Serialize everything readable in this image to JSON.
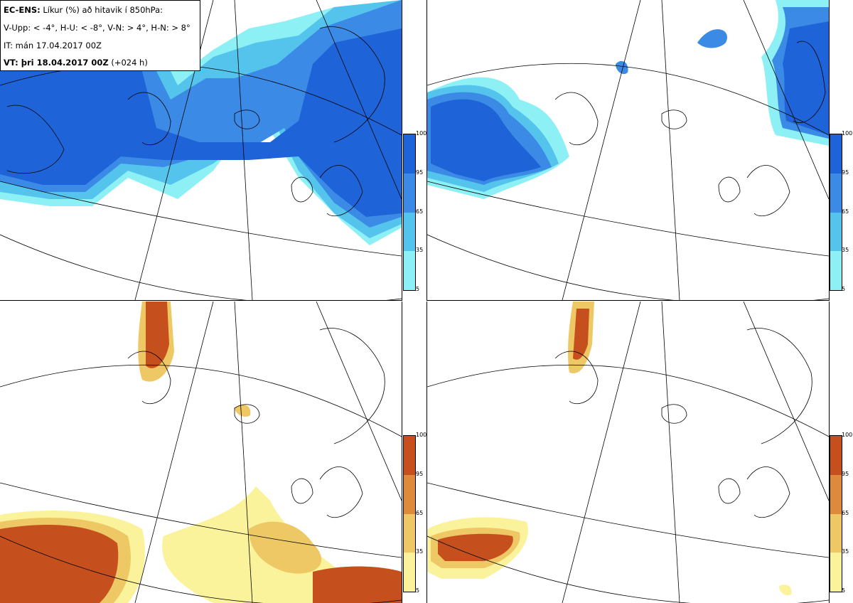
{
  "header": {
    "line1_model": "EC-ENS:",
    "line1_rest": "Líkur (%) að hitavik í 850hPa:",
    "line2": "V-Upp: < -4°, H-U: < -8°, V-N: > 4°, H-N: > 8°",
    "line3": "IT: mán 17.04.2017 00Z",
    "line4_vt": "VT: þri 18.04.2017 00Z",
    "line4_lead": "(+024 h)"
  },
  "colorbar": {
    "ticks": [
      "100",
      "95",
      "65",
      "35",
      "5"
    ],
    "blue_colors": [
      "#1e64d8",
      "#3a8ae6",
      "#54c4ec",
      "#8cf0f4"
    ],
    "orange_colors": [
      "#c5501d",
      "#dd8a3c",
      "#eec864",
      "#fbf39c"
    ]
  },
  "panels": [
    {
      "id": "top-left",
      "variable": "V-Upp"
    },
    {
      "id": "top-right",
      "variable": "H-U"
    },
    {
      "id": "bottom-left",
      "variable": "V-N"
    },
    {
      "id": "bottom-right",
      "variable": "H-N"
    }
  ]
}
